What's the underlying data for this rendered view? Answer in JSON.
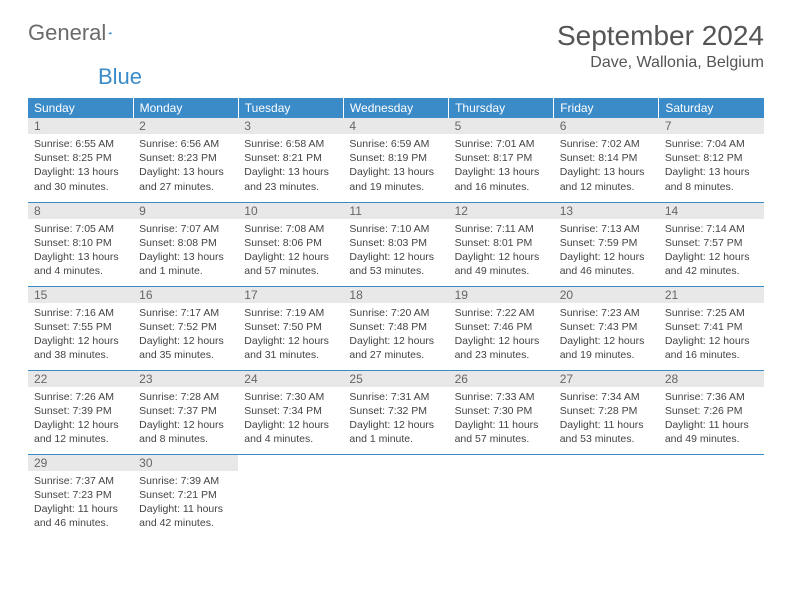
{
  "brand": {
    "general": "General",
    "blue": "Blue"
  },
  "title": "September 2024",
  "location": "Dave, Wallonia, Belgium",
  "colors": {
    "header_bg": "#3b8bc9",
    "header_text": "#ffffff",
    "daynum_bg": "#e8e8e8",
    "border": "#3b8bc9",
    "text": "#444444"
  },
  "weekdays": [
    "Sunday",
    "Monday",
    "Tuesday",
    "Wednesday",
    "Thursday",
    "Friday",
    "Saturday"
  ],
  "days": [
    {
      "n": 1,
      "sunrise": "6:55 AM",
      "sunset": "8:25 PM",
      "daylight": "13 hours and 30 minutes."
    },
    {
      "n": 2,
      "sunrise": "6:56 AM",
      "sunset": "8:23 PM",
      "daylight": "13 hours and 27 minutes."
    },
    {
      "n": 3,
      "sunrise": "6:58 AM",
      "sunset": "8:21 PM",
      "daylight": "13 hours and 23 minutes."
    },
    {
      "n": 4,
      "sunrise": "6:59 AM",
      "sunset": "8:19 PM",
      "daylight": "13 hours and 19 minutes."
    },
    {
      "n": 5,
      "sunrise": "7:01 AM",
      "sunset": "8:17 PM",
      "daylight": "13 hours and 16 minutes."
    },
    {
      "n": 6,
      "sunrise": "7:02 AM",
      "sunset": "8:14 PM",
      "daylight": "13 hours and 12 minutes."
    },
    {
      "n": 7,
      "sunrise": "7:04 AM",
      "sunset": "8:12 PM",
      "daylight": "13 hours and 8 minutes."
    },
    {
      "n": 8,
      "sunrise": "7:05 AM",
      "sunset": "8:10 PM",
      "daylight": "13 hours and 4 minutes."
    },
    {
      "n": 9,
      "sunrise": "7:07 AM",
      "sunset": "8:08 PM",
      "daylight": "13 hours and 1 minute."
    },
    {
      "n": 10,
      "sunrise": "7:08 AM",
      "sunset": "8:06 PM",
      "daylight": "12 hours and 57 minutes."
    },
    {
      "n": 11,
      "sunrise": "7:10 AM",
      "sunset": "8:03 PM",
      "daylight": "12 hours and 53 minutes."
    },
    {
      "n": 12,
      "sunrise": "7:11 AM",
      "sunset": "8:01 PM",
      "daylight": "12 hours and 49 minutes."
    },
    {
      "n": 13,
      "sunrise": "7:13 AM",
      "sunset": "7:59 PM",
      "daylight": "12 hours and 46 minutes."
    },
    {
      "n": 14,
      "sunrise": "7:14 AM",
      "sunset": "7:57 PM",
      "daylight": "12 hours and 42 minutes."
    },
    {
      "n": 15,
      "sunrise": "7:16 AM",
      "sunset": "7:55 PM",
      "daylight": "12 hours and 38 minutes."
    },
    {
      "n": 16,
      "sunrise": "7:17 AM",
      "sunset": "7:52 PM",
      "daylight": "12 hours and 35 minutes."
    },
    {
      "n": 17,
      "sunrise": "7:19 AM",
      "sunset": "7:50 PM",
      "daylight": "12 hours and 31 minutes."
    },
    {
      "n": 18,
      "sunrise": "7:20 AM",
      "sunset": "7:48 PM",
      "daylight": "12 hours and 27 minutes."
    },
    {
      "n": 19,
      "sunrise": "7:22 AM",
      "sunset": "7:46 PM",
      "daylight": "12 hours and 23 minutes."
    },
    {
      "n": 20,
      "sunrise": "7:23 AM",
      "sunset": "7:43 PM",
      "daylight": "12 hours and 19 minutes."
    },
    {
      "n": 21,
      "sunrise": "7:25 AM",
      "sunset": "7:41 PM",
      "daylight": "12 hours and 16 minutes."
    },
    {
      "n": 22,
      "sunrise": "7:26 AM",
      "sunset": "7:39 PM",
      "daylight": "12 hours and 12 minutes."
    },
    {
      "n": 23,
      "sunrise": "7:28 AM",
      "sunset": "7:37 PM",
      "daylight": "12 hours and 8 minutes."
    },
    {
      "n": 24,
      "sunrise": "7:30 AM",
      "sunset": "7:34 PM",
      "daylight": "12 hours and 4 minutes."
    },
    {
      "n": 25,
      "sunrise": "7:31 AM",
      "sunset": "7:32 PM",
      "daylight": "12 hours and 1 minute."
    },
    {
      "n": 26,
      "sunrise": "7:33 AM",
      "sunset": "7:30 PM",
      "daylight": "11 hours and 57 minutes."
    },
    {
      "n": 27,
      "sunrise": "7:34 AM",
      "sunset": "7:28 PM",
      "daylight": "11 hours and 53 minutes."
    },
    {
      "n": 28,
      "sunrise": "7:36 AM",
      "sunset": "7:26 PM",
      "daylight": "11 hours and 49 minutes."
    },
    {
      "n": 29,
      "sunrise": "7:37 AM",
      "sunset": "7:23 PM",
      "daylight": "11 hours and 46 minutes."
    },
    {
      "n": 30,
      "sunrise": "7:39 AM",
      "sunset": "7:21 PM",
      "daylight": "11 hours and 42 minutes."
    }
  ],
  "labels": {
    "sunrise": "Sunrise:",
    "sunset": "Sunset:",
    "daylight": "Daylight:"
  },
  "layout": {
    "first_weekday_offset": 0,
    "total_cells": 35
  }
}
